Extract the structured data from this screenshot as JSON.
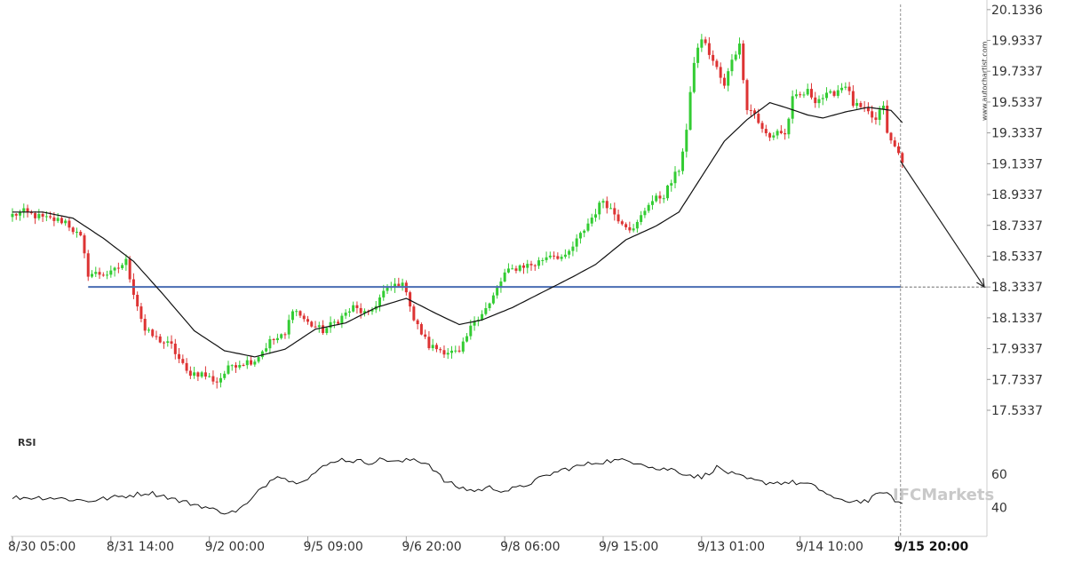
{
  "chart_data": {
    "type": "candlestick",
    "watermark_vertical": "www.autochartist.com",
    "brand_watermark": "IFCMarkets",
    "price_axis": {
      "ylim": [
        17.43,
        20.15
      ],
      "ticks": [
        "20.1336",
        "19.9337",
        "19.7337",
        "19.5337",
        "19.3337",
        "19.1337",
        "18.9337",
        "18.7337",
        "18.5337",
        "18.3337",
        "18.1337",
        "17.9337",
        "17.7337",
        "17.5337"
      ]
    },
    "time_axis": {
      "labels": [
        "8/30 05:00",
        "8/31 14:00",
        "9/2 00:00",
        "9/5 09:00",
        "9/6 20:00",
        "9/8 06:00",
        "9/9 15:00",
        "9/13 01:00",
        "9/14 10:00",
        "9/15 20:00"
      ],
      "label_bar_index": [
        0,
        26,
        52,
        78,
        104,
        130,
        156,
        182,
        208,
        234
      ],
      "highlighted_label": "9/15 20:00"
    },
    "support_level": {
      "value": 18.3337,
      "start_bar": 20,
      "color": "#4a6db3"
    },
    "forecast": {
      "from_price": 19.15,
      "to_price": 18.3337,
      "color": "#222222"
    },
    "moving_average": {
      "color": "#111111"
    },
    "colors": {
      "up": "#33cc33",
      "down": "#dd3333"
    },
    "rsi": {
      "label": "RSI",
      "ylim": [
        26,
        78
      ],
      "ticks": [
        "60",
        "40"
      ],
      "color": "#111111"
    },
    "ma_anchors": [
      [
        0,
        18.82
      ],
      [
        8,
        18.82
      ],
      [
        16,
        18.78
      ],
      [
        24,
        18.65
      ],
      [
        32,
        18.5
      ],
      [
        40,
        18.28
      ],
      [
        48,
        18.05
      ],
      [
        56,
        17.92
      ],
      [
        64,
        17.88
      ],
      [
        72,
        17.93
      ],
      [
        80,
        18.06
      ],
      [
        88,
        18.1
      ],
      [
        96,
        18.2
      ],
      [
        104,
        18.26
      ],
      [
        112,
        18.16
      ],
      [
        118,
        18.09
      ],
      [
        124,
        18.12
      ],
      [
        132,
        18.2
      ],
      [
        140,
        18.3
      ],
      [
        148,
        18.4
      ],
      [
        154,
        18.48
      ],
      [
        162,
        18.64
      ],
      [
        170,
        18.73
      ],
      [
        176,
        18.82
      ],
      [
        182,
        19.05
      ],
      [
        188,
        19.28
      ],
      [
        194,
        19.42
      ],
      [
        200,
        19.53
      ],
      [
        204,
        19.5
      ],
      [
        210,
        19.45
      ],
      [
        214,
        19.43
      ],
      [
        220,
        19.47
      ],
      [
        226,
        19.5
      ],
      [
        232,
        19.48
      ],
      [
        235,
        19.4
      ]
    ],
    "price_anchors": [
      [
        0,
        18.8
      ],
      [
        3,
        18.82
      ],
      [
        8,
        18.78
      ],
      [
        14,
        18.76
      ],
      [
        18,
        18.65
      ],
      [
        20,
        18.42
      ],
      [
        26,
        18.42
      ],
      [
        30,
        18.5
      ],
      [
        32,
        18.3
      ],
      [
        35,
        18.05
      ],
      [
        38,
        18.0
      ],
      [
        42,
        17.95
      ],
      [
        46,
        17.78
      ],
      [
        50,
        17.77
      ],
      [
        54,
        17.72
      ],
      [
        58,
        17.83
      ],
      [
        64,
        17.86
      ],
      [
        68,
        17.98
      ],
      [
        72,
        18.02
      ],
      [
        74,
        18.2
      ],
      [
        78,
        18.1
      ],
      [
        82,
        18.05
      ],
      [
        86,
        18.12
      ],
      [
        90,
        18.2
      ],
      [
        94,
        18.15
      ],
      [
        98,
        18.3
      ],
      [
        102,
        18.36
      ],
      [
        104,
        18.32
      ],
      [
        106,
        18.12
      ],
      [
        110,
        17.95
      ],
      [
        114,
        17.92
      ],
      [
        118,
        17.9
      ],
      [
        122,
        18.12
      ],
      [
        126,
        18.22
      ],
      [
        130,
        18.42
      ],
      [
        134,
        18.47
      ],
      [
        138,
        18.48
      ],
      [
        142,
        18.55
      ],
      [
        146,
        18.52
      ],
      [
        150,
        18.67
      ],
      [
        156,
        18.9
      ],
      [
        160,
        18.78
      ],
      [
        164,
        18.7
      ],
      [
        168,
        18.88
      ],
      [
        172,
        18.93
      ],
      [
        176,
        19.1
      ],
      [
        178,
        19.35
      ],
      [
        180,
        19.8
      ],
      [
        182,
        19.95
      ],
      [
        184,
        19.85
      ],
      [
        186,
        19.75
      ],
      [
        188,
        19.63
      ],
      [
        190,
        19.82
      ],
      [
        192,
        19.9
      ],
      [
        194,
        19.5
      ],
      [
        196,
        19.46
      ],
      [
        198,
        19.35
      ],
      [
        200,
        19.3
      ],
      [
        202,
        19.35
      ],
      [
        204,
        19.32
      ],
      [
        206,
        19.55
      ],
      [
        210,
        19.6
      ],
      [
        212,
        19.55
      ],
      [
        216,
        19.58
      ],
      [
        220,
        19.65
      ],
      [
        222,
        19.52
      ],
      [
        226,
        19.46
      ],
      [
        228,
        19.41
      ],
      [
        230,
        19.52
      ],
      [
        231,
        19.32
      ],
      [
        233,
        19.24
      ],
      [
        235,
        19.16
      ]
    ],
    "rsi_anchors": [
      [
        0,
        46
      ],
      [
        10,
        46
      ],
      [
        20,
        44
      ],
      [
        30,
        47
      ],
      [
        36,
        49
      ],
      [
        40,
        47
      ],
      [
        44,
        44
      ],
      [
        50,
        41
      ],
      [
        54,
        38
      ],
      [
        58,
        37
      ],
      [
        62,
        42
      ],
      [
        66,
        52
      ],
      [
        70,
        60
      ],
      [
        74,
        55
      ],
      [
        78,
        58
      ],
      [
        82,
        64
      ],
      [
        86,
        69
      ],
      [
        90,
        68
      ],
      [
        94,
        67
      ],
      [
        98,
        69
      ],
      [
        102,
        67
      ],
      [
        106,
        69
      ],
      [
        110,
        66
      ],
      [
        114,
        56
      ],
      [
        118,
        52
      ],
      [
        122,
        50
      ],
      [
        126,
        52
      ],
      [
        130,
        50
      ],
      [
        134,
        52
      ],
      [
        138,
        56
      ],
      [
        142,
        60
      ],
      [
        146,
        63
      ],
      [
        150,
        65
      ],
      [
        154,
        67
      ],
      [
        158,
        68
      ],
      [
        162,
        68
      ],
      [
        166,
        67
      ],
      [
        170,
        63
      ],
      [
        174,
        63
      ],
      [
        178,
        60
      ],
      [
        182,
        58
      ],
      [
        186,
        64
      ],
      [
        190,
        60
      ],
      [
        194,
        57
      ],
      [
        198,
        55
      ],
      [
        202,
        55
      ],
      [
        206,
        55
      ],
      [
        210,
        54
      ],
      [
        214,
        50
      ],
      [
        218,
        44
      ],
      [
        222,
        44
      ],
      [
        226,
        44
      ],
      [
        228,
        47
      ],
      [
        230,
        50
      ],
      [
        232,
        46
      ],
      [
        235,
        42
      ]
    ]
  }
}
